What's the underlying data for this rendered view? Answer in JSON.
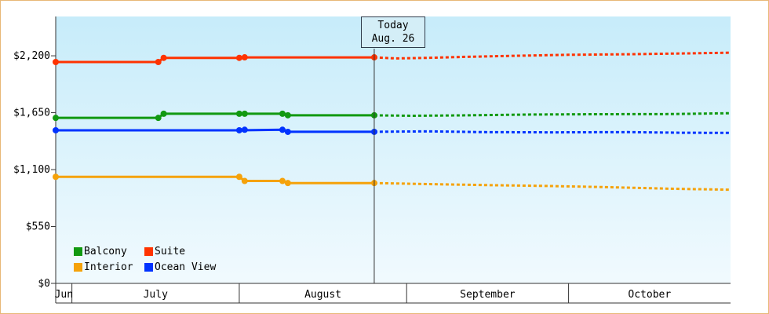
{
  "chart_data": {
    "type": "line",
    "x_axis": {
      "months": [
        "Jun",
        "July",
        "August",
        "September",
        "October"
      ],
      "range": [
        "2023-06-28",
        "2023-10-31"
      ]
    },
    "y_axis": {
      "ticks": [
        "$0",
        "$550",
        "$1,100",
        "$1,650",
        "$2,200"
      ],
      "tick_values": [
        0,
        550,
        1100,
        1650,
        2200
      ],
      "ylim": [
        0,
        2580
      ]
    },
    "today_marker": {
      "title": "Today",
      "date_label": "Aug. 26",
      "date": "2023-08-26"
    },
    "series": [
      {
        "name": "Suite",
        "color": "#ff3300",
        "actual": [
          [
            "2023-06-28",
            2140
          ],
          [
            "2023-07-17",
            2140
          ],
          [
            "2023-07-18",
            2180
          ],
          [
            "2023-08-01",
            2180
          ],
          [
            "2023-08-02",
            2185
          ],
          [
            "2023-08-26",
            2185
          ]
        ],
        "markers": [
          [
            "2023-06-28",
            2140
          ],
          [
            "2023-07-17",
            2140
          ],
          [
            "2023-07-18",
            2180
          ],
          [
            "2023-08-01",
            2180
          ],
          [
            "2023-08-02",
            2185
          ],
          [
            "2023-08-26",
            2185
          ]
        ],
        "forecast": [
          [
            "2023-08-26",
            2185
          ],
          [
            "2023-08-30",
            2175
          ],
          [
            "2023-09-05",
            2180
          ],
          [
            "2023-09-12",
            2190
          ],
          [
            "2023-09-21",
            2200
          ],
          [
            "2023-10-01",
            2210
          ],
          [
            "2023-10-12",
            2215
          ],
          [
            "2023-10-25",
            2225
          ],
          [
            "2023-10-31",
            2230
          ]
        ]
      },
      {
        "name": "Balcony",
        "color": "#119911",
        "actual": [
          [
            "2023-06-28",
            1600
          ],
          [
            "2023-07-17",
            1600
          ],
          [
            "2023-07-18",
            1640
          ],
          [
            "2023-08-01",
            1640
          ],
          [
            "2023-08-09",
            1640
          ],
          [
            "2023-08-10",
            1625
          ],
          [
            "2023-08-26",
            1625
          ]
        ],
        "markers": [
          [
            "2023-06-28",
            1600
          ],
          [
            "2023-07-17",
            1600
          ],
          [
            "2023-07-18",
            1640
          ],
          [
            "2023-08-01",
            1640
          ],
          [
            "2023-08-02",
            1640
          ],
          [
            "2023-08-09",
            1640
          ],
          [
            "2023-08-10",
            1625
          ],
          [
            "2023-08-26",
            1625
          ]
        ],
        "forecast": [
          [
            "2023-08-26",
            1625
          ],
          [
            "2023-09-02",
            1620
          ],
          [
            "2023-09-12",
            1625
          ],
          [
            "2023-09-24",
            1632
          ],
          [
            "2023-10-06",
            1635
          ],
          [
            "2023-10-20",
            1637
          ],
          [
            "2023-10-31",
            1645
          ]
        ]
      },
      {
        "name": "Ocean View",
        "color": "#0033ff",
        "actual": [
          [
            "2023-06-28",
            1480
          ],
          [
            "2023-08-01",
            1480
          ],
          [
            "2023-08-09",
            1485
          ],
          [
            "2023-08-10",
            1465
          ],
          [
            "2023-08-26",
            1465
          ]
        ],
        "markers": [
          [
            "2023-06-28",
            1480
          ],
          [
            "2023-08-01",
            1480
          ],
          [
            "2023-08-02",
            1485
          ],
          [
            "2023-08-09",
            1485
          ],
          [
            "2023-08-10",
            1465
          ],
          [
            "2023-08-26",
            1465
          ]
        ],
        "forecast": [
          [
            "2023-08-26",
            1465
          ],
          [
            "2023-09-05",
            1470
          ],
          [
            "2023-09-15",
            1462
          ],
          [
            "2023-09-28",
            1460
          ],
          [
            "2023-10-12",
            1462
          ],
          [
            "2023-10-22",
            1456
          ],
          [
            "2023-10-31",
            1455
          ]
        ]
      },
      {
        "name": "Interior",
        "color": "#f5a20a",
        "actual": [
          [
            "2023-06-28",
            1030
          ],
          [
            "2023-08-01",
            1030
          ],
          [
            "2023-08-02",
            990
          ],
          [
            "2023-08-09",
            990
          ],
          [
            "2023-08-10",
            970
          ],
          [
            "2023-08-26",
            970
          ]
        ],
        "markers": [
          [
            "2023-06-28",
            1030
          ],
          [
            "2023-08-01",
            1030
          ],
          [
            "2023-08-02",
            990
          ],
          [
            "2023-08-09",
            990
          ],
          [
            "2023-08-10",
            970
          ],
          [
            "2023-08-26",
            970
          ]
        ],
        "forecast": [
          [
            "2023-08-26",
            970
          ],
          [
            "2023-09-05",
            960
          ],
          [
            "2023-09-16",
            950
          ],
          [
            "2023-09-27",
            942
          ],
          [
            "2023-10-08",
            930
          ],
          [
            "2023-10-20",
            915
          ],
          [
            "2023-10-31",
            905
          ]
        ]
      }
    ],
    "legend": [
      {
        "name": "Balcony",
        "color": "#119911"
      },
      {
        "name": "Suite",
        "color": "#ff3300"
      },
      {
        "name": "Interior",
        "color": "#f5a20a"
      },
      {
        "name": "Ocean View",
        "color": "#0033ff"
      }
    ],
    "legend_placement": "bottom-left",
    "grid": false
  }
}
